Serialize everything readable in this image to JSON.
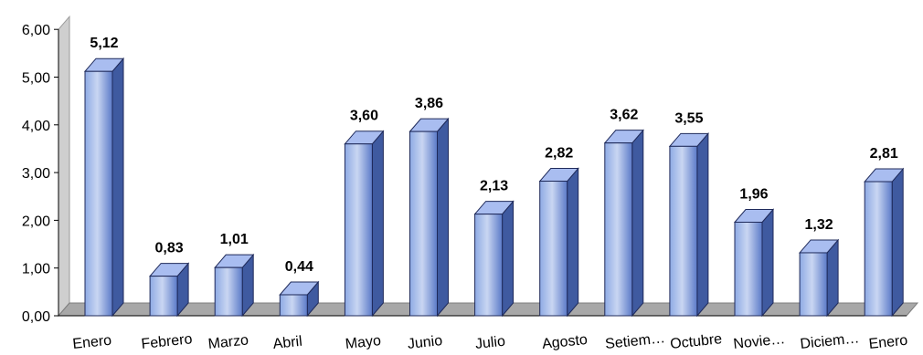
{
  "chart_data": {
    "type": "bar",
    "title": "",
    "xlabel": "",
    "ylabel": "",
    "ylim": [
      0,
      6
    ],
    "yticks": [
      "0,00",
      "1,00",
      "2,00",
      "3,00",
      "4,00",
      "5,00",
      "6,00"
    ],
    "categories": [
      "Enero",
      "Febrero",
      "Marzo",
      "Abril",
      "Mayo",
      "Junio",
      "Julio",
      "Agosto",
      "Setiem…",
      "Octubre",
      "Novie…",
      "Diciem…",
      "Enero"
    ],
    "values": [
      5.12,
      0.83,
      1.01,
      0.44,
      3.6,
      3.86,
      2.13,
      2.82,
      3.62,
      3.55,
      1.96,
      1.32,
      2.81
    ],
    "data_labels": [
      "5,12",
      "0,83",
      "1,01",
      "0,44",
      "3,60",
      "3,86",
      "2,13",
      "2,82",
      "3,62",
      "3,55",
      "1,96",
      "1,32",
      "2,81"
    ],
    "style": "3d-bar",
    "grid": false,
    "colors": {
      "bar_light": "#c9d6f2",
      "bar_mid": "#8eaae4",
      "bar_dark": "#5b7ac8",
      "bar_side": "#3f5aa0",
      "bar_top": "#a9bdf0",
      "bar_edge": "#1f2a5a",
      "wall": "#cfcfcf",
      "floor": "#a8a8a8",
      "axis": "#000000"
    }
  }
}
